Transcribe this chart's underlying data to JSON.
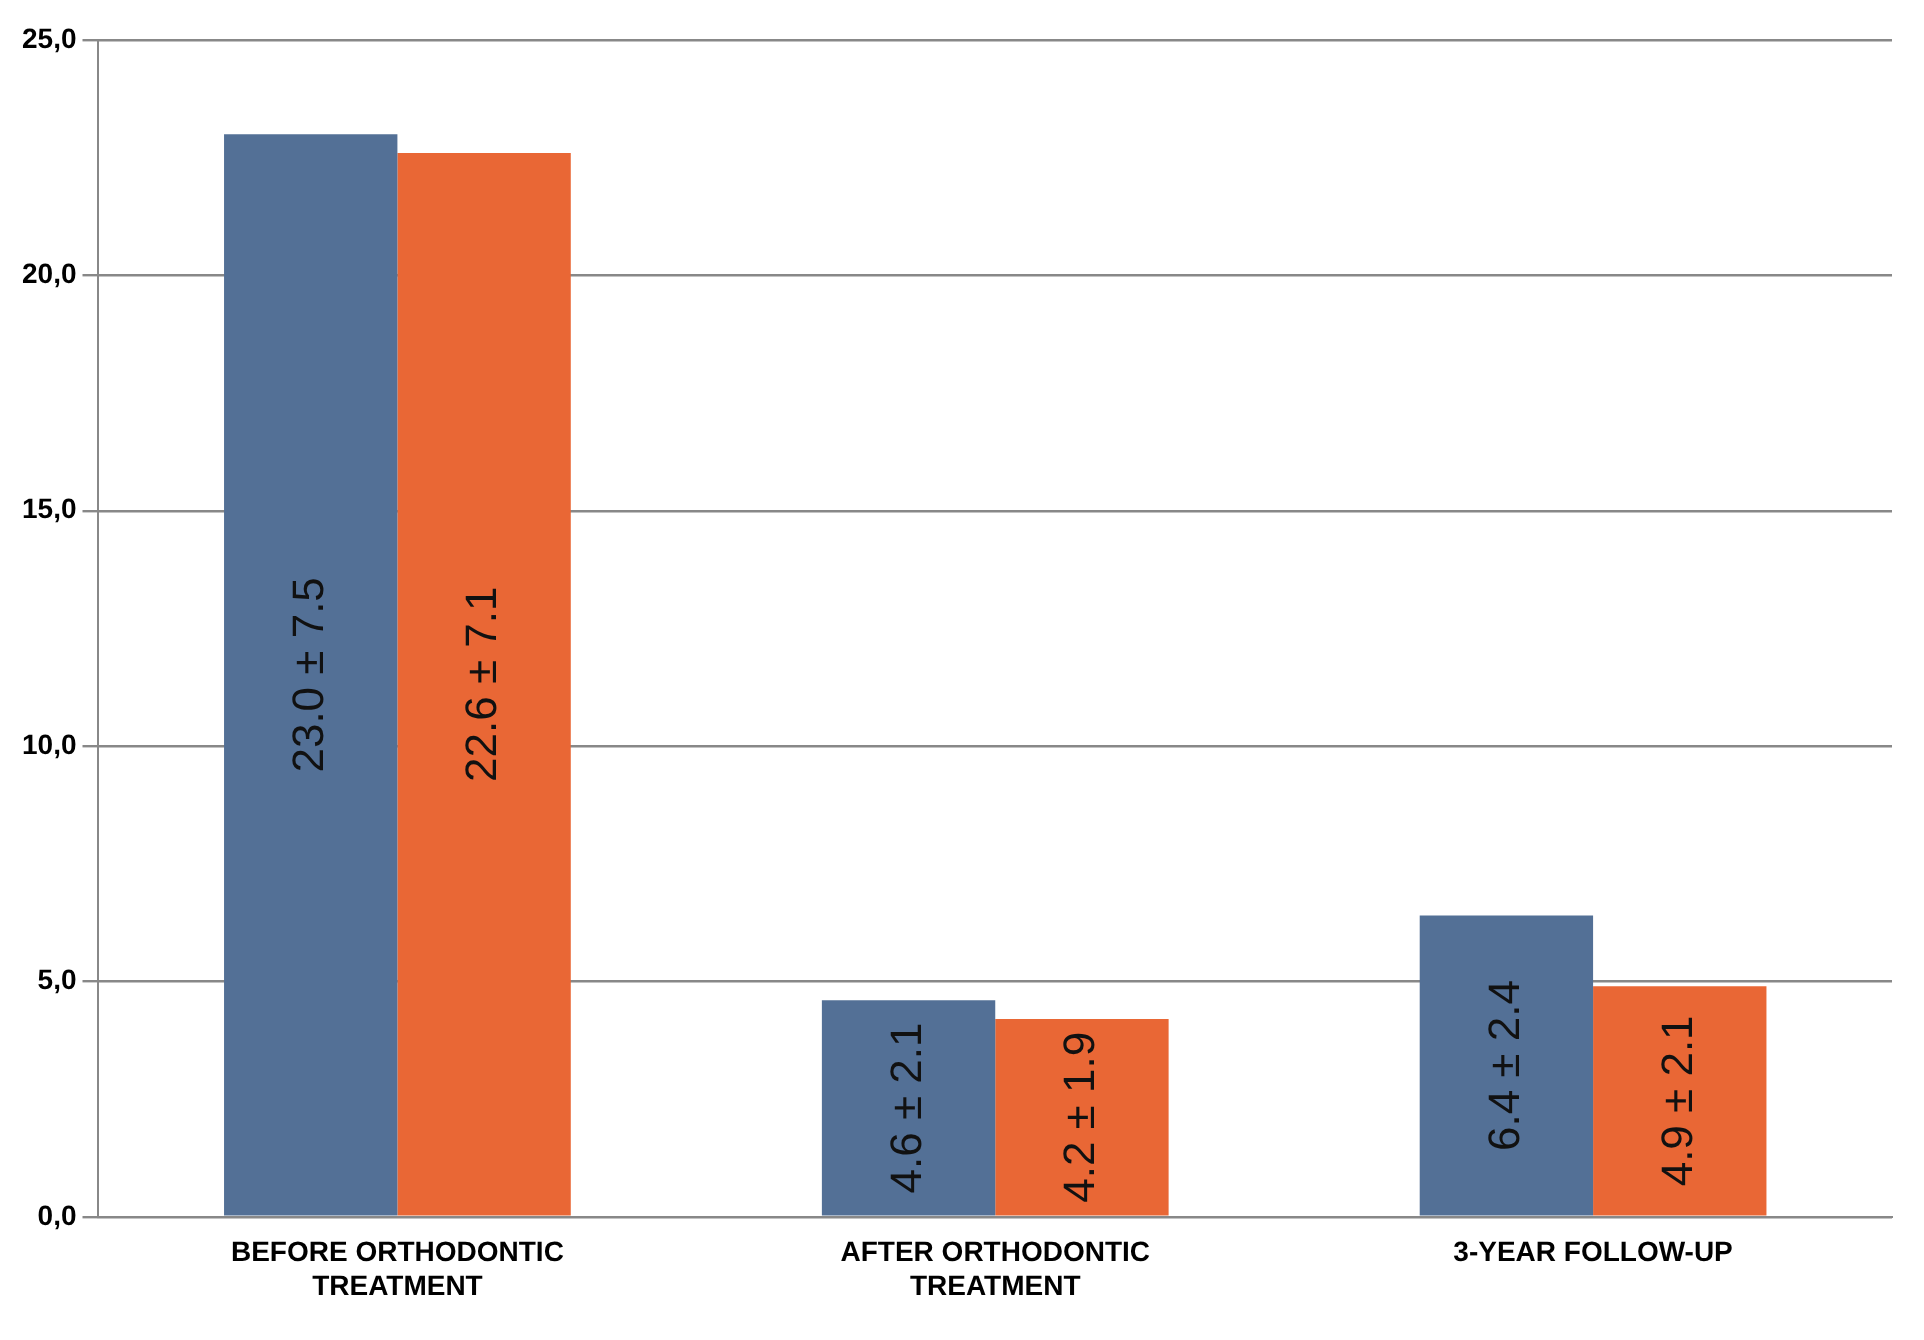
{
  "chart_data": {
    "type": "bar",
    "categories": [
      "BEFORE ORTHODONTIC TREATMENT",
      "AFTER ORTHODONTIC TREATMENT",
      "3-YEAR FOLLOW-UP"
    ],
    "series": [
      {
        "color": "#537096",
        "values": [
          23.0,
          4.6,
          6.4
        ],
        "value_labels": [
          "23.0 ± 7.5",
          "4.6 ± 2.1",
          "6.4 ± 2.4"
        ]
      },
      {
        "color": "#e96735",
        "values": [
          22.6,
          4.2,
          4.9
        ],
        "value_labels": [
          "22.6 ± 7.1",
          "4.2 ± 1.9",
          "4.9 ± 2.1"
        ]
      }
    ],
    "ylim": [
      0,
      25
    ],
    "yticks": [
      {
        "value": 0,
        "label": "0,0"
      },
      {
        "value": 5,
        "label": "5,0"
      },
      {
        "value": 10,
        "label": "10,0"
      },
      {
        "value": 15,
        "label": "15,0"
      },
      {
        "value": 20,
        "label": "20,0"
      },
      {
        "value": 25,
        "label": "25,0"
      }
    ],
    "grid": "y"
  }
}
